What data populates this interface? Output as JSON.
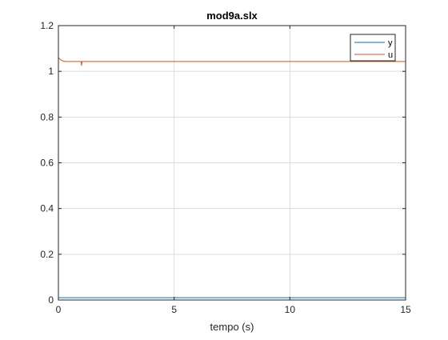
{
  "chart_data": {
    "type": "line",
    "title": "mod9a.slx",
    "xlabel": "tempo (s)",
    "ylabel": "",
    "xlim": [
      0,
      15
    ],
    "ylim": [
      0,
      1.2
    ],
    "xticks": [
      0,
      5,
      10,
      15
    ],
    "xtick_labels": [
      "0",
      "5",
      "10",
      "15"
    ],
    "yticks": [
      0,
      0.2,
      0.4,
      0.6,
      0.8,
      1,
      1.2
    ],
    "ytick_labels": [
      "0",
      "0.2",
      "0.4",
      "0.6",
      "0.8",
      "1",
      "1.2"
    ],
    "grid": true,
    "legend_position": "top-right",
    "series": [
      {
        "name": "y",
        "color": "#0072bd",
        "x": [
          0,
          1,
          2,
          4,
          6,
          8,
          10,
          12,
          14,
          15
        ],
        "y": [
          0.01,
          0.01,
          0.01,
          0.01,
          0.01,
          0.01,
          0.01,
          0.01,
          0.01,
          0.01
        ]
      },
      {
        "name": "u",
        "color": "#d95319",
        "x": [
          0,
          0.05,
          0.1,
          0.2,
          0.3,
          0.4,
          0.6,
          0.8,
          0.98,
          1.0,
          1.02,
          1.1,
          1.5,
          2,
          3,
          4,
          5,
          6,
          7,
          8,
          9,
          10,
          11,
          12,
          13,
          14,
          15
        ],
        "y": [
          1.06,
          1.055,
          1.05,
          1.045,
          1.043,
          1.043,
          1.043,
          1.043,
          1.043,
          1.025,
          1.043,
          1.043,
          1.043,
          1.043,
          1.043,
          1.043,
          1.043,
          1.043,
          1.043,
          1.043,
          1.043,
          1.043,
          1.043,
          1.043,
          1.043,
          1.043,
          1.043
        ]
      }
    ]
  }
}
